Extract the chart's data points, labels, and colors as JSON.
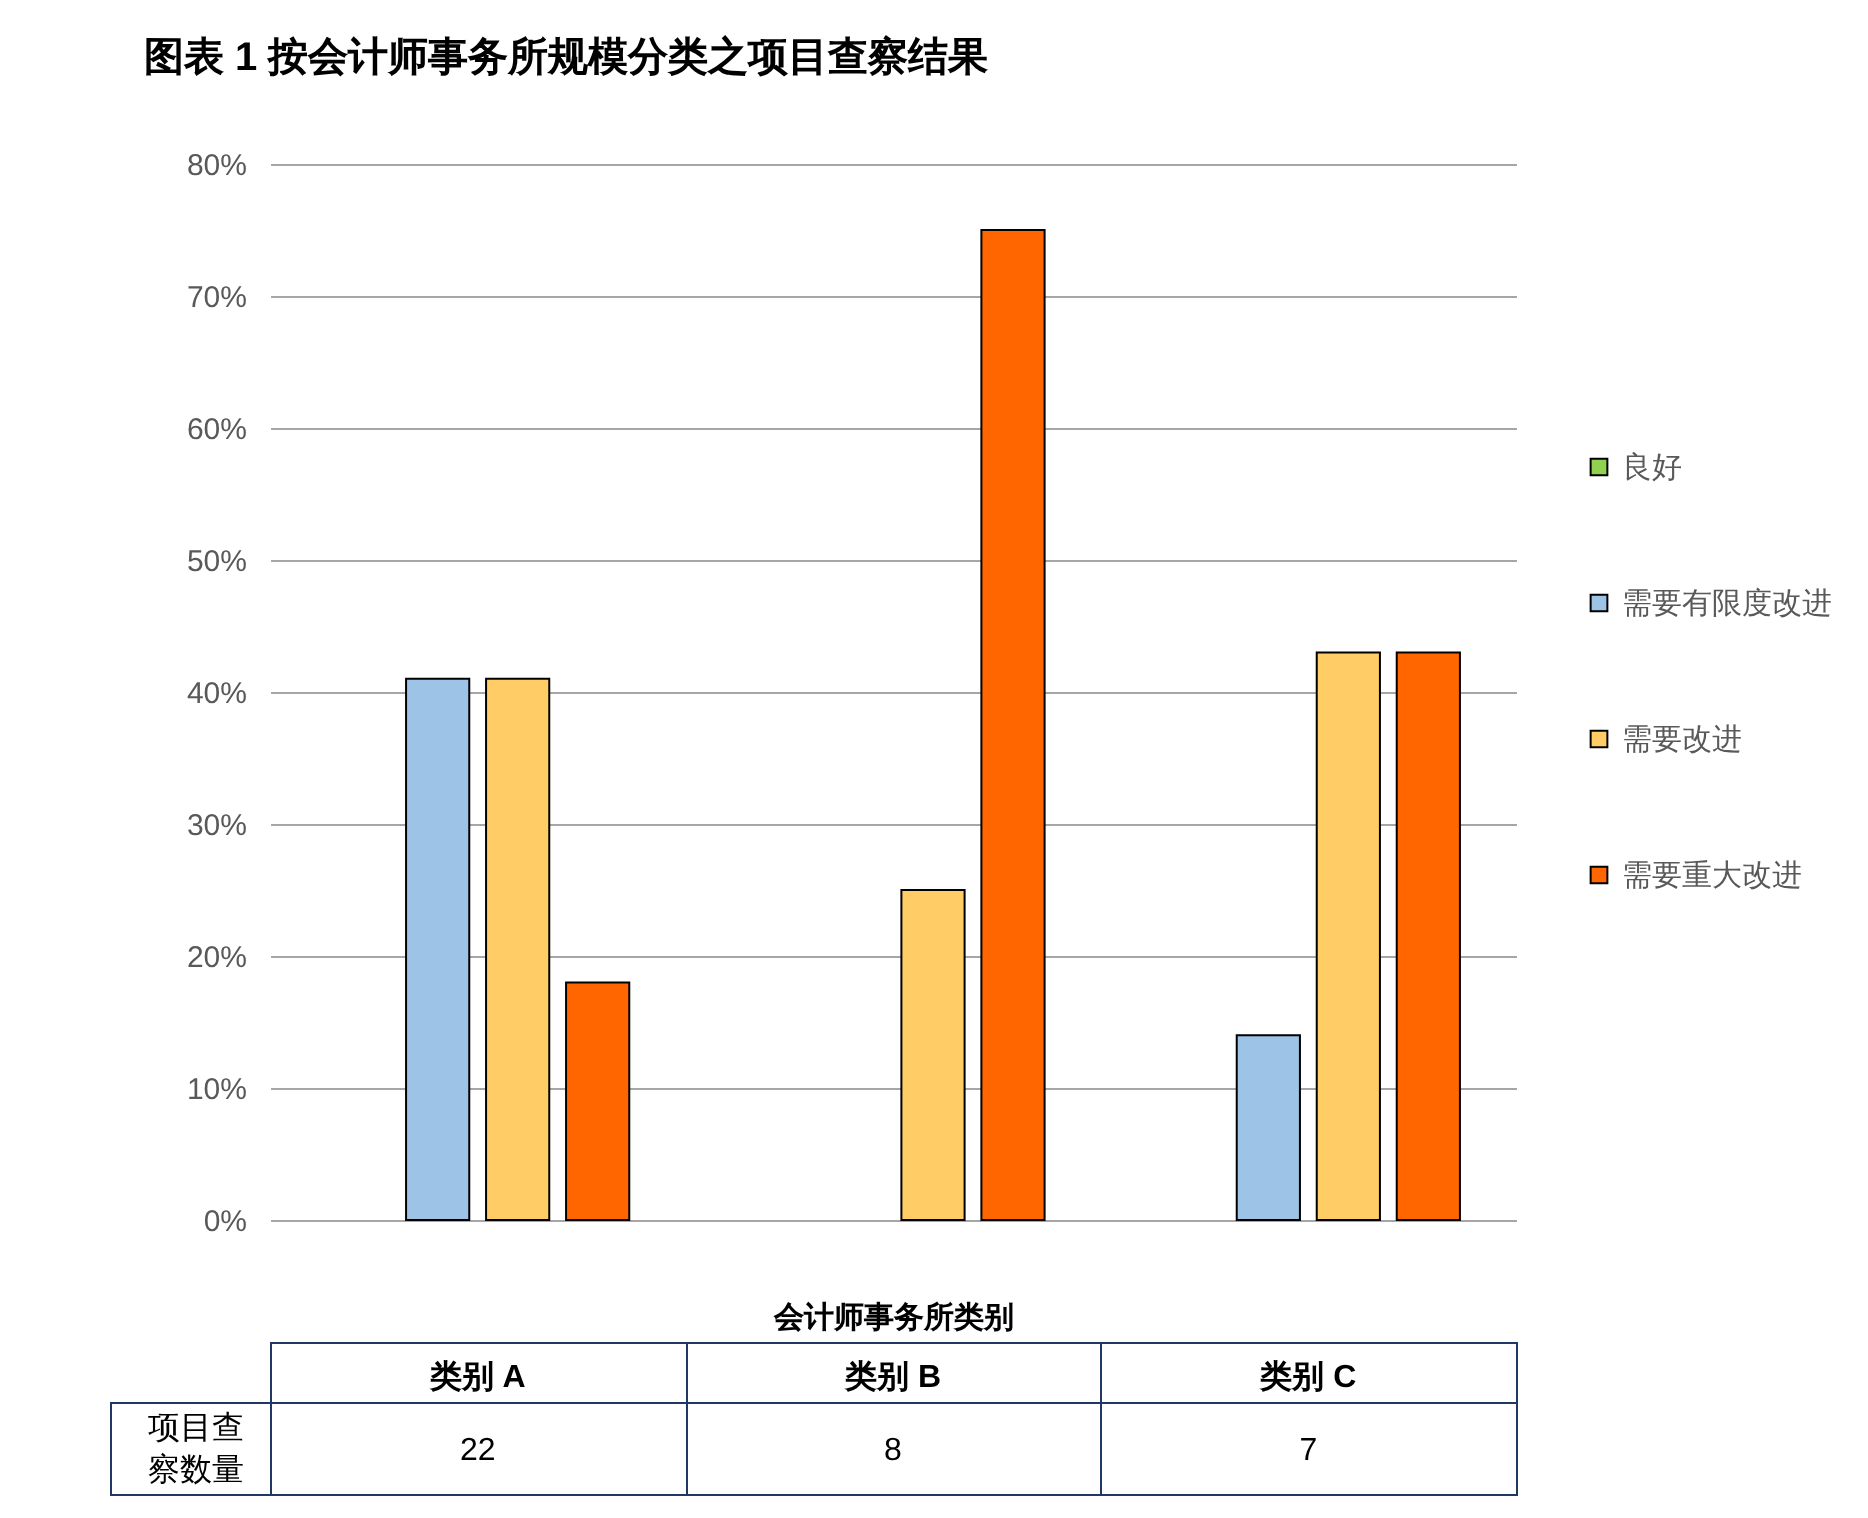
{
  "chart_data": {
    "type": "bar",
    "title": "图表 1 按会计师事务所规模分类之项目查察结果",
    "xlabel": "会计师事务所类别",
    "categories": [
      "类别 A",
      "类别 B",
      "类别 C"
    ],
    "series": [
      {
        "name": "良好",
        "color": "#92d050",
        "values": [
          null,
          null,
          null
        ]
      },
      {
        "name": "需要有限度改进",
        "color": "#9dc3e6",
        "values": [
          41,
          null,
          14
        ]
      },
      {
        "name": "需要改进",
        "color": "#ffcc66",
        "values": [
          41,
          25,
          43
        ]
      },
      {
        "name": "需要重大改进",
        "color": "#ff6600",
        "values": [
          18,
          75,
          43
        ]
      }
    ],
    "ylim": [
      0,
      80
    ],
    "yticks": [
      {
        "value": 0,
        "label": "0%"
      },
      {
        "value": 10,
        "label": "10%"
      },
      {
        "value": 20,
        "label": "20%"
      },
      {
        "value": 30,
        "label": "30%"
      },
      {
        "value": 40,
        "label": "40%"
      },
      {
        "value": 50,
        "label": "50%"
      },
      {
        "value": 60,
        "label": "60%"
      },
      {
        "value": 70,
        "label": "70%"
      },
      {
        "value": 80,
        "label": "80%"
      }
    ],
    "grid": "y",
    "legend": "right",
    "annotations": [
      "项目查察数量",
      "22",
      "8",
      "7"
    ]
  }
}
